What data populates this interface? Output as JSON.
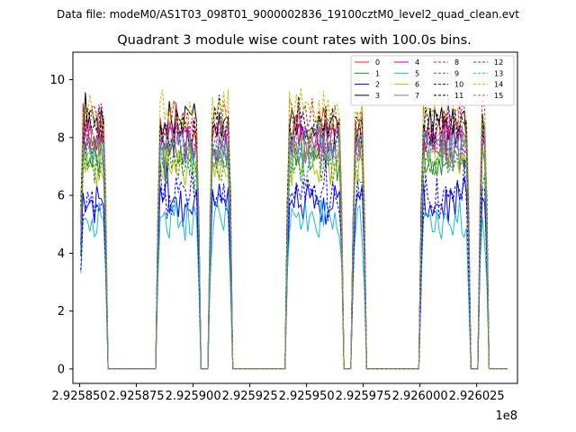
{
  "chart_data": {
    "type": "line",
    "suptitle": "Data file: modeM0/AS1T03_098T01_9000002836_19100cztM0_level2_quad_clean.evt",
    "title": "Quadrant 3 module wise count rates with 100.0s bins.",
    "xlabel": "",
    "ylabel": "",
    "x_offset_label": "1e8",
    "xlim": [
      2.925847,
      2.926043
    ],
    "ylim": [
      -0.5,
      10.95
    ],
    "x_ticks": [
      2.92585,
      2.925875,
      2.9259,
      2.925925,
      2.92595,
      2.925975,
      2.926,
      2.926025
    ],
    "x_tick_labels": [
      "2.925850",
      "2.925875",
      "2.925900",
      "2.925925",
      "2.925950",
      "2.925975",
      "2.926000",
      "2.926025"
    ],
    "y_ticks": [
      0,
      2,
      4,
      6,
      8,
      10
    ],
    "y_tick_labels": [
      "0",
      "2",
      "4",
      "6",
      "8",
      "10"
    ],
    "segments": [
      {
        "start": 2.92585,
        "end": 2.925862
      },
      {
        "start": 2.925884,
        "end": 2.925903
      },
      {
        "start": 2.925907,
        "end": 2.925917
      },
      {
        "start": 2.925941,
        "end": 2.925966
      },
      {
        "start": 2.92597,
        "end": 2.925976
      },
      {
        "start": 2.926,
        "end": 2.926022
      },
      {
        "start": 2.926026,
        "end": 2.92603
      }
    ],
    "series": [
      {
        "name": "0",
        "color": "#d62728",
        "style": "solid",
        "mean": 8.1
      },
      {
        "name": "1",
        "color": "#228b22",
        "style": "solid",
        "mean": 7.3
      },
      {
        "name": "2",
        "color": "#0000ff",
        "style": "solid",
        "mean": 5.7
      },
      {
        "name": "3",
        "color": "#000000",
        "style": "solid",
        "mean": 8.5
      },
      {
        "name": "4",
        "color": "#bf00bf",
        "style": "solid",
        "mean": 7.8
      },
      {
        "name": "5",
        "color": "#17becf",
        "style": "solid",
        "mean": 5.1
      },
      {
        "name": "6",
        "color": "#bfbf00",
        "style": "solid",
        "mean": 7.1
      },
      {
        "name": "7",
        "color": "#7f7f7f",
        "style": "solid",
        "mean": 7.6
      },
      {
        "name": "8",
        "color": "#d62728",
        "style": "dashed",
        "mean": 8.6
      },
      {
        "name": "9",
        "color": "#228b22",
        "style": "dashed",
        "mean": 7.0
      },
      {
        "name": "10",
        "color": "#0000ff",
        "style": "dashed",
        "mean": 5.9
      },
      {
        "name": "11",
        "color": "#000000",
        "style": "dashed",
        "mean": 8.3
      },
      {
        "name": "12",
        "color": "#bf00bf",
        "style": "dashed",
        "mean": 7.9
      },
      {
        "name": "13",
        "color": "#17becf",
        "style": "dashed",
        "mean": 7.5
      },
      {
        "name": "14",
        "color": "#bfbf00",
        "style": "dashed",
        "mean": 8.9
      },
      {
        "name": "15",
        "color": "#7f7f7f",
        "style": "dashed",
        "mean": 7.7
      }
    ],
    "legend_position": "top-right",
    "legend_columns": 4
  }
}
